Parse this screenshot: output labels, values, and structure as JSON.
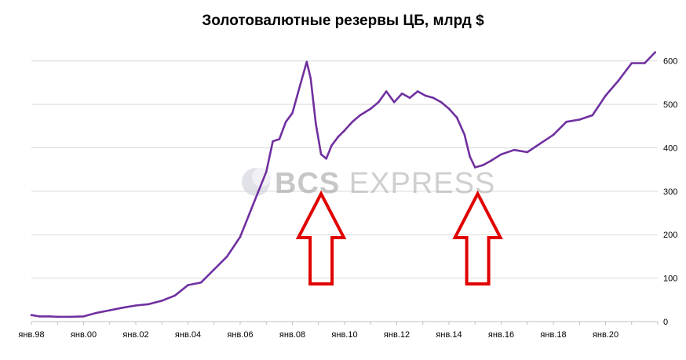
{
  "chart_data": {
    "type": "line",
    "title": "Золотовалютные  резервы ЦБ, млрд $",
    "xlabel": "",
    "ylabel": "",
    "ylim": [
      0,
      650
    ],
    "y_ticks": [
      0,
      100,
      200,
      300,
      400,
      500,
      600
    ],
    "y_axis_position": "right",
    "x_tick_labels": [
      "янв.98",
      "янв.00",
      "янв.02",
      "янв.04",
      "янв.06",
      "янв.08",
      "янв.10",
      "янв.12",
      "янв.14",
      "янв.16",
      "янв.18",
      "янв.20"
    ],
    "grid": "horizontal",
    "legend": "none",
    "line_color": "#7030a0",
    "series": [
      {
        "x": [
          1998.0,
          1998.3,
          1998.7,
          1999.0,
          1999.5,
          2000.0,
          2000.5,
          2001.0,
          2001.5,
          2002.0,
          2002.5,
          2003.0,
          2003.5,
          2004.0,
          2004.5,
          2005.0,
          2005.5,
          2006.0,
          2006.5,
          2007.0,
          2007.25,
          2007.5,
          2007.75,
          2008.0,
          2008.3,
          2008.55,
          2008.7,
          2008.9,
          2009.1,
          2009.3,
          2009.5,
          2009.75,
          2010.0,
          2010.3,
          2010.6,
          2011.0,
          2011.3,
          2011.6,
          2011.9,
          2012.2,
          2012.5,
          2012.8,
          2013.1,
          2013.4,
          2013.7,
          2014.0,
          2014.3,
          2014.6,
          2014.8,
          2015.0,
          2015.3,
          2015.6,
          2016.0,
          2016.5,
          2017.0,
          2017.5,
          2018.0,
          2018.5,
          2019.0,
          2019.5,
          2020.0,
          2020.5,
          2021.0,
          2021.5,
          2021.9
        ],
        "values": [
          15,
          12,
          12,
          11,
          11,
          12,
          20,
          26,
          32,
          37,
          40,
          48,
          60,
          84,
          90,
          120,
          150,
          195,
          270,
          345,
          415,
          420,
          460,
          480,
          545,
          598,
          560,
          455,
          385,
          375,
          405,
          425,
          440,
          460,
          475,
          490,
          505,
          530,
          505,
          525,
          515,
          530,
          520,
          515,
          505,
          490,
          470,
          430,
          380,
          355,
          360,
          370,
          385,
          395,
          390,
          410,
          430,
          460,
          465,
          475,
          520,
          555,
          595,
          595,
          620
        ]
      }
    ]
  },
  "watermark": {
    "text_bold": "BCS",
    "text_light": " EXPRESS"
  },
  "arrows": {
    "color": "#e00000",
    "positions_x": [
      2009.1,
      2015.1
    ]
  }
}
